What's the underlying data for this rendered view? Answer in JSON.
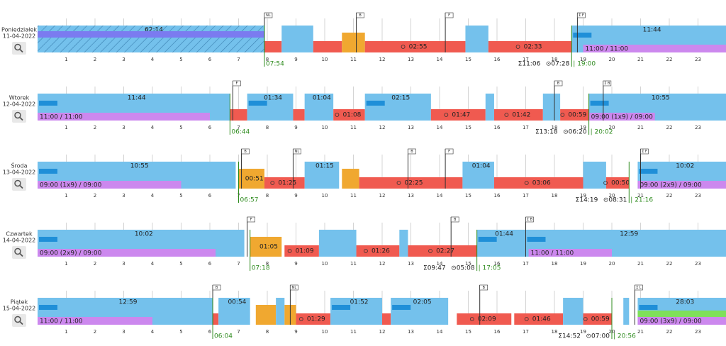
{
  "hours": [
    1,
    2,
    3,
    4,
    5,
    6,
    7,
    8,
    9,
    10,
    11,
    12,
    13,
    14,
    15,
    16,
    17,
    18,
    19,
    20,
    21,
    22,
    23
  ],
  "days": [
    {
      "name": "Poniedziałek",
      "date": "11-04-2022",
      "start": "07:54",
      "total": "Σ11:06",
      "drive": "⊙07:28",
      "end": "| 19:00",
      "segments": [
        {
          "kind": "rest",
          "start": 0,
          "end": 7.9,
          "label": "62:14",
          "hatched": true
        },
        {
          "kind": "drive",
          "start": 7.9,
          "end": 8.5
        },
        {
          "kind": "rest",
          "start": 8.5,
          "end": 9.6
        },
        {
          "kind": "drive",
          "start": 9.6,
          "end": 10.6
        },
        {
          "kind": "work",
          "start": 10.6,
          "end": 11.4
        },
        {
          "kind": "drive",
          "start": 11.4,
          "end": 14.9,
          "label": "02:55"
        },
        {
          "kind": "rest",
          "start": 14.9,
          "end": 15.7
        },
        {
          "kind": "drive",
          "start": 15.7,
          "end": 18.6,
          "label": "02:33"
        },
        {
          "kind": "rest",
          "start": 18.6,
          "end": 24,
          "label": "11:44"
        }
      ],
      "strips": [
        {
          "kind": "violet",
          "start": 0,
          "end": 7.9
        },
        {
          "kind": "purple",
          "start": 19,
          "end": 24,
          "label": "11:00 / 11:00"
        }
      ],
      "flags": [
        {
          "at": 7.9,
          "label": "NL"
        },
        {
          "at": 11.1,
          "label": "B"
        },
        {
          "at": 14.2,
          "label": "F"
        },
        {
          "at": 18.8,
          "label": "Σ F"
        }
      ]
    },
    {
      "name": "Wtorek",
      "date": "12-04-2022",
      "start": "06:44",
      "total": "Σ13:18",
      "drive": "⊙06:20",
      "end": "| 20:02",
      "segments": [
        {
          "kind": "rest",
          "start": 0,
          "end": 6.7,
          "label": "11:44"
        },
        {
          "kind": "drive",
          "start": 6.7,
          "end": 7.3
        },
        {
          "kind": "rest",
          "start": 7.3,
          "end": 8.9,
          "label": "01:34"
        },
        {
          "kind": "drive",
          "start": 8.9,
          "end": 9.3
        },
        {
          "kind": "rest",
          "start": 9.3,
          "end": 10.3,
          "label": "01:04"
        },
        {
          "kind": "drive",
          "start": 10.3,
          "end": 11.4,
          "label": "01:08"
        },
        {
          "kind": "rest",
          "start": 11.4,
          "end": 13.7,
          "label": "02:15"
        },
        {
          "kind": "drive",
          "start": 13.7,
          "end": 15.6,
          "label": "01:47"
        },
        {
          "kind": "rest",
          "start": 15.6,
          "end": 15.9
        },
        {
          "kind": "drive",
          "start": 15.9,
          "end": 17.6,
          "label": "01:42"
        },
        {
          "kind": "rest",
          "start": 17.6,
          "end": 18.2
        },
        {
          "kind": "drive",
          "start": 18.2,
          "end": 19.2,
          "label": "00:59"
        },
        {
          "kind": "rest",
          "start": 19.2,
          "end": 24,
          "label": "10:55"
        }
      ],
      "strips": [
        {
          "kind": "purple",
          "start": 0,
          "end": 6,
          "label": "11:00 / 11:00"
        },
        {
          "kind": "purple",
          "start": 19.2,
          "end": 21.5,
          "label": "09:00 (1x9) / 09:00"
        }
      ],
      "flags": [
        {
          "at": 6.8,
          "label": "F"
        },
        {
          "at": 18,
          "label": "B"
        },
        {
          "at": 19.7,
          "label": "Σ B"
        }
      ]
    },
    {
      "name": "Środa",
      "date": "13-04-2022",
      "start": "06:57",
      "total": "Σ14:19",
      "drive": "⊙08:31",
      "end": "| 21:16",
      "segments": [
        {
          "kind": "rest",
          "start": 0,
          "end": 6.9,
          "label": "10:55"
        },
        {
          "kind": "work",
          "start": 7,
          "end": 7.9,
          "label": "00:51"
        },
        {
          "kind": "drive",
          "start": 7.9,
          "end": 9.3,
          "label": "01:25"
        },
        {
          "kind": "rest",
          "start": 9.3,
          "end": 10.5,
          "label": "01:15"
        },
        {
          "kind": "work",
          "start": 10.6,
          "end": 11.2
        },
        {
          "kind": "drive",
          "start": 11.2,
          "end": 14.8,
          "label": "02:25"
        },
        {
          "kind": "rest",
          "start": 14.8,
          "end": 15.9,
          "label": "01:04"
        },
        {
          "kind": "drive",
          "start": 15.9,
          "end": 19,
          "label": "03:06"
        },
        {
          "kind": "rest",
          "start": 19,
          "end": 19.8
        },
        {
          "kind": "drive",
          "start": 19.8,
          "end": 20.6,
          "label": "00:50"
        },
        {
          "kind": "rest",
          "start": 20.9,
          "end": 24,
          "label": "10:02"
        }
      ],
      "strips": [
        {
          "kind": "purple",
          "start": 0,
          "end": 5,
          "label": "09:00 (1x9) / 09:00"
        },
        {
          "kind": "purple",
          "start": 20.9,
          "end": 24,
          "label": "09:00 (2x9) / 09:00"
        }
      ],
      "flags": [
        {
          "at": 7.1,
          "label": "B"
        },
        {
          "at": 8.9,
          "label": "NL"
        },
        {
          "at": 12.9,
          "label": "B"
        },
        {
          "at": 14.2,
          "label": "F"
        },
        {
          "at": 21,
          "label": "Σ F"
        }
      ]
    },
    {
      "name": "Czwartek",
      "date": "14-04-2022",
      "start": "07:18",
      "total": "Σ09:47",
      "drive": "⊙05:08",
      "end": "| 17:05",
      "segments": [
        {
          "kind": "rest",
          "start": 0,
          "end": 7.2,
          "label": "10:02"
        },
        {
          "kind": "work",
          "start": 7.4,
          "end": 8.5,
          "label": "01:05"
        },
        {
          "kind": "drive",
          "start": 8.6,
          "end": 9.8,
          "label": "01:09"
        },
        {
          "kind": "rest",
          "start": 9.8,
          "end": 11.1
        },
        {
          "kind": "drive",
          "start": 11.1,
          "end": 12.6,
          "label": "01:26"
        },
        {
          "kind": "rest",
          "start": 12.6,
          "end": 12.9
        },
        {
          "kind": "drive",
          "start": 12.9,
          "end": 15.3,
          "label": "02:27"
        },
        {
          "kind": "rest",
          "start": 15.3,
          "end": 17,
          "label": "01:44"
        },
        {
          "kind": "rest",
          "start": 17,
          "end": 24,
          "label": "12:59"
        }
      ],
      "strips": [
        {
          "kind": "purple",
          "start": 0,
          "end": 6.2,
          "label": "09:00 (2x9) / 09:00"
        },
        {
          "kind": "purple",
          "start": 17.1,
          "end": 20,
          "label": "11:00 / 11:00"
        }
      ],
      "flags": [
        {
          "at": 7.3,
          "label": "F"
        },
        {
          "at": 14.4,
          "label": "B"
        },
        {
          "at": 17,
          "label": "Σ B"
        }
      ]
    },
    {
      "name": "Piątek",
      "date": "15-04-2022",
      "start": "06:04",
      "total": "Σ14:52",
      "drive": "⊙07:00",
      "end": "| 20:56",
      "segments": [
        {
          "kind": "rest",
          "start": 0,
          "end": 6.1,
          "label": "12:59"
        },
        {
          "kind": "drive",
          "start": 6.1,
          "end": 6.3
        },
        {
          "kind": "rest",
          "start": 6.3,
          "end": 7.4,
          "label": "00:54"
        },
        {
          "kind": "work",
          "start": 7.6,
          "end": 8.3
        },
        {
          "kind": "rest",
          "start": 8.3,
          "end": 8.6
        },
        {
          "kind": "work",
          "start": 8.6,
          "end": 9
        },
        {
          "kind": "drive",
          "start": 9,
          "end": 10.2,
          "label": "01:29"
        },
        {
          "kind": "rest",
          "start": 10.2,
          "end": 12,
          "label": "01:52"
        },
        {
          "kind": "drive",
          "start": 12,
          "end": 12.3
        },
        {
          "kind": "rest",
          "start": 12.3,
          "end": 14.3,
          "label": "02:05"
        },
        {
          "kind": "drive",
          "start": 14.6,
          "end": 16.5,
          "label": "02:09"
        },
        {
          "kind": "drive",
          "start": 16.6,
          "end": 18.3,
          "label": "01:46"
        },
        {
          "kind": "rest",
          "start": 18.3,
          "end": 19
        },
        {
          "kind": "drive",
          "start": 19,
          "end": 20,
          "label": "00:59"
        },
        {
          "kind": "rest",
          "start": 20.4,
          "end": 20.6
        },
        {
          "kind": "rest",
          "start": 20.9,
          "end": 24,
          "label": "28:03"
        }
      ],
      "strips": [
        {
          "kind": "purple",
          "start": 0,
          "end": 4,
          "label": "11:00 / 11:00"
        },
        {
          "kind": "green",
          "start": 20.9,
          "end": 24
        },
        {
          "kind": "purple",
          "start": 20.9,
          "end": 24,
          "label": "09:00 (3x9) / 09:00"
        }
      ],
      "flags": [
        {
          "at": 6.1,
          "label": "B"
        },
        {
          "at": 8.8,
          "label": "NL"
        },
        {
          "at": 15.4,
          "label": "B"
        },
        {
          "at": 20.8,
          "label": "Σ L"
        }
      ]
    }
  ]
}
